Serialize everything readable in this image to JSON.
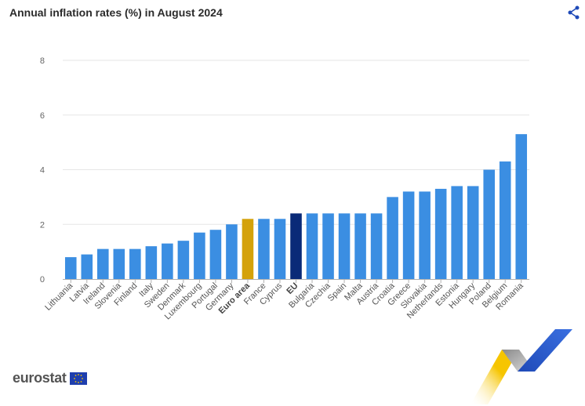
{
  "header": {
    "title": "Annual inflation rates (%) in August 2024",
    "share_icon": "share-icon"
  },
  "branding": {
    "logo_text": "eurostat",
    "flag_icon": "eu-flag-icon"
  },
  "colors": {
    "default": "#3b8ee2",
    "euro_area": "#d4a20b",
    "eu": "#0a2a78",
    "grid": "#e6e6e6",
    "accent_blue": "#1f4ab8",
    "accent_yellow": "#f6c500"
  },
  "chart_data": {
    "type": "bar",
    "title": "Annual inflation rates (%) in August 2024",
    "xlabel": "",
    "ylabel": "",
    "ylim": [
      0,
      8
    ],
    "yticks": [
      "0",
      "2",
      "4",
      "6",
      "8"
    ],
    "grid": true,
    "legend": "none",
    "categories": [
      "Lithuania",
      "Latvia",
      "Ireland",
      "Slovenia",
      "Finland",
      "Italy",
      "Sweden",
      "Denmark",
      "Luxembourg",
      "Portugal",
      "Germany",
      "Euro area",
      "France",
      "Cyprus",
      "EU",
      "Bulgaria",
      "Czechia",
      "Spain",
      "Malta",
      "Austria",
      "Croatia",
      "Greece",
      "Slovakia",
      "Netherlands",
      "Estonia",
      "Hungary",
      "Poland",
      "Belgium",
      "Romania"
    ],
    "values": [
      0.8,
      0.9,
      1.1,
      1.1,
      1.1,
      1.2,
      1.3,
      1.4,
      1.7,
      1.8,
      2.0,
      2.2,
      2.2,
      2.2,
      2.4,
      2.4,
      2.4,
      2.4,
      2.4,
      2.4,
      3.0,
      3.2,
      3.2,
      3.3,
      3.4,
      3.4,
      4.0,
      4.3,
      5.3
    ],
    "highlight": {
      "Euro area": "euro_area",
      "EU": "eu"
    },
    "bold_categories": [
      "Euro area",
      "EU"
    ]
  }
}
